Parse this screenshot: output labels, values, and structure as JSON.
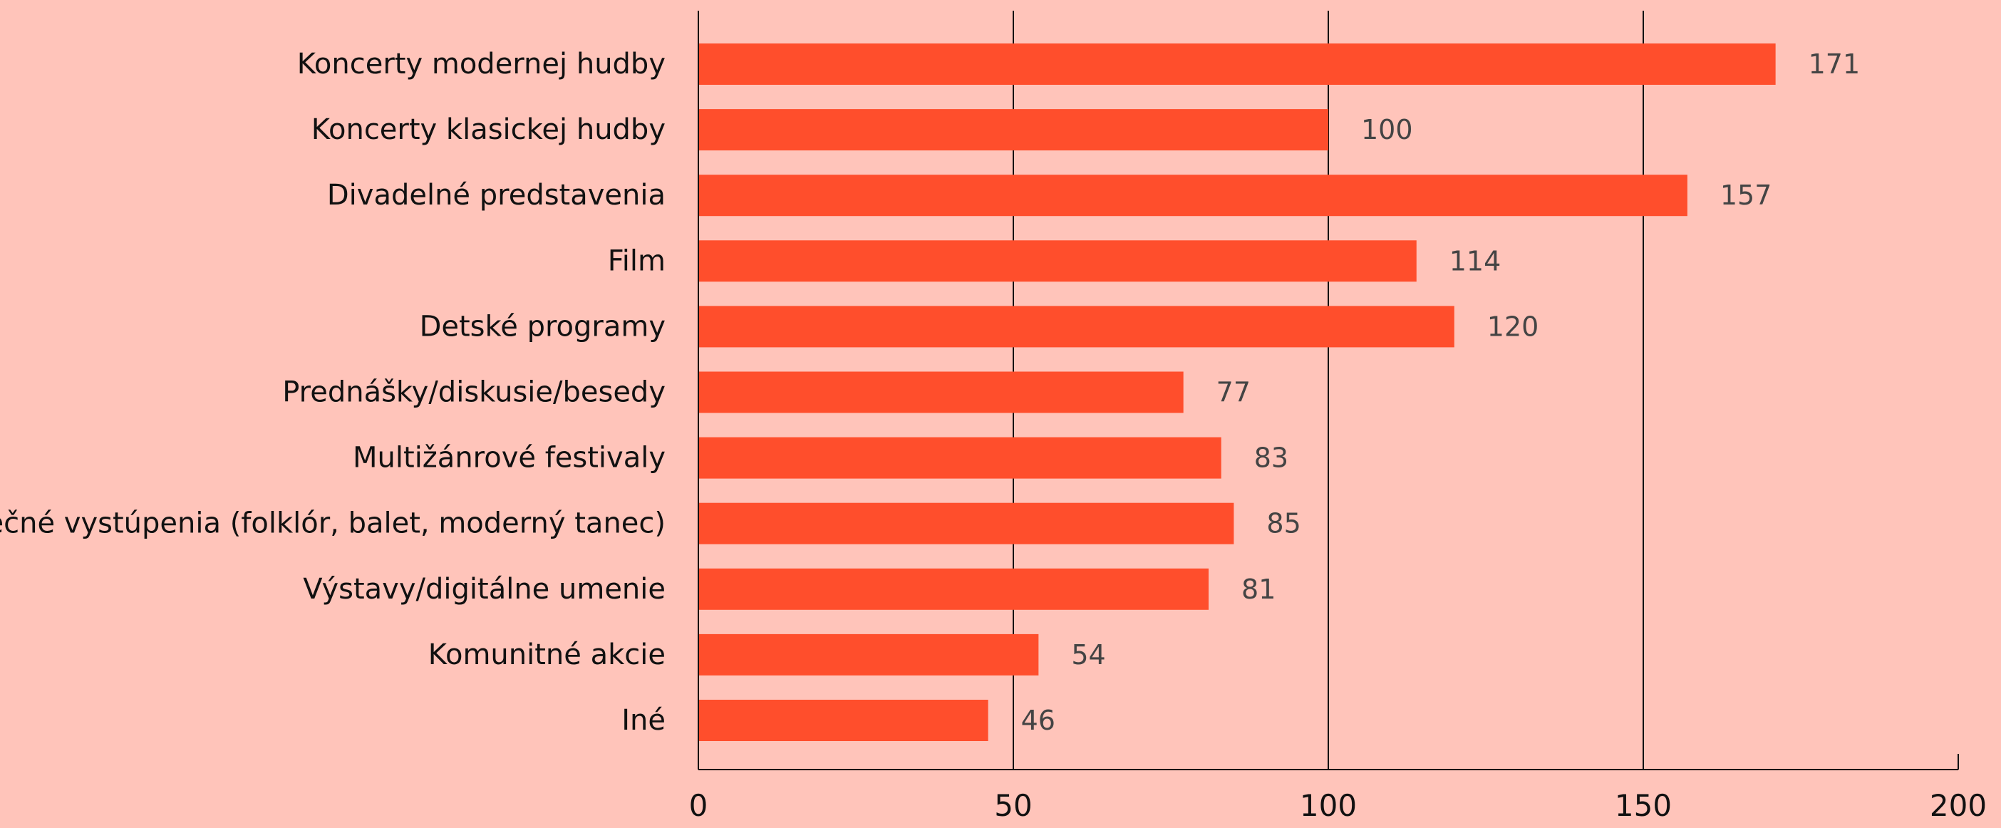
{
  "chart_data": {
    "type": "bar",
    "orientation": "horizontal",
    "categories": [
      "Koncerty modernej hudby",
      "Koncerty klasickej hudby",
      "Divadelné predstavenia",
      "Film",
      "Detské programy",
      "Prednášky/diskusie/besedy",
      "Multižánrové festivaly",
      "Tanečné vystúpenia (folklór, balet, moderný tanec)",
      "Výstavy/digitálne umenie",
      "Komunitné akcie",
      "Iné"
    ],
    "values": [
      171,
      100,
      157,
      114,
      120,
      77,
      83,
      85,
      81,
      54,
      46
    ],
    "xlim": [
      0,
      200
    ],
    "xticks": [
      0,
      50,
      100,
      150,
      200
    ],
    "grid": "vertical",
    "bar_color": "#FF4E2C",
    "background_color": "#FFC4BA",
    "show_value_labels": true
  }
}
